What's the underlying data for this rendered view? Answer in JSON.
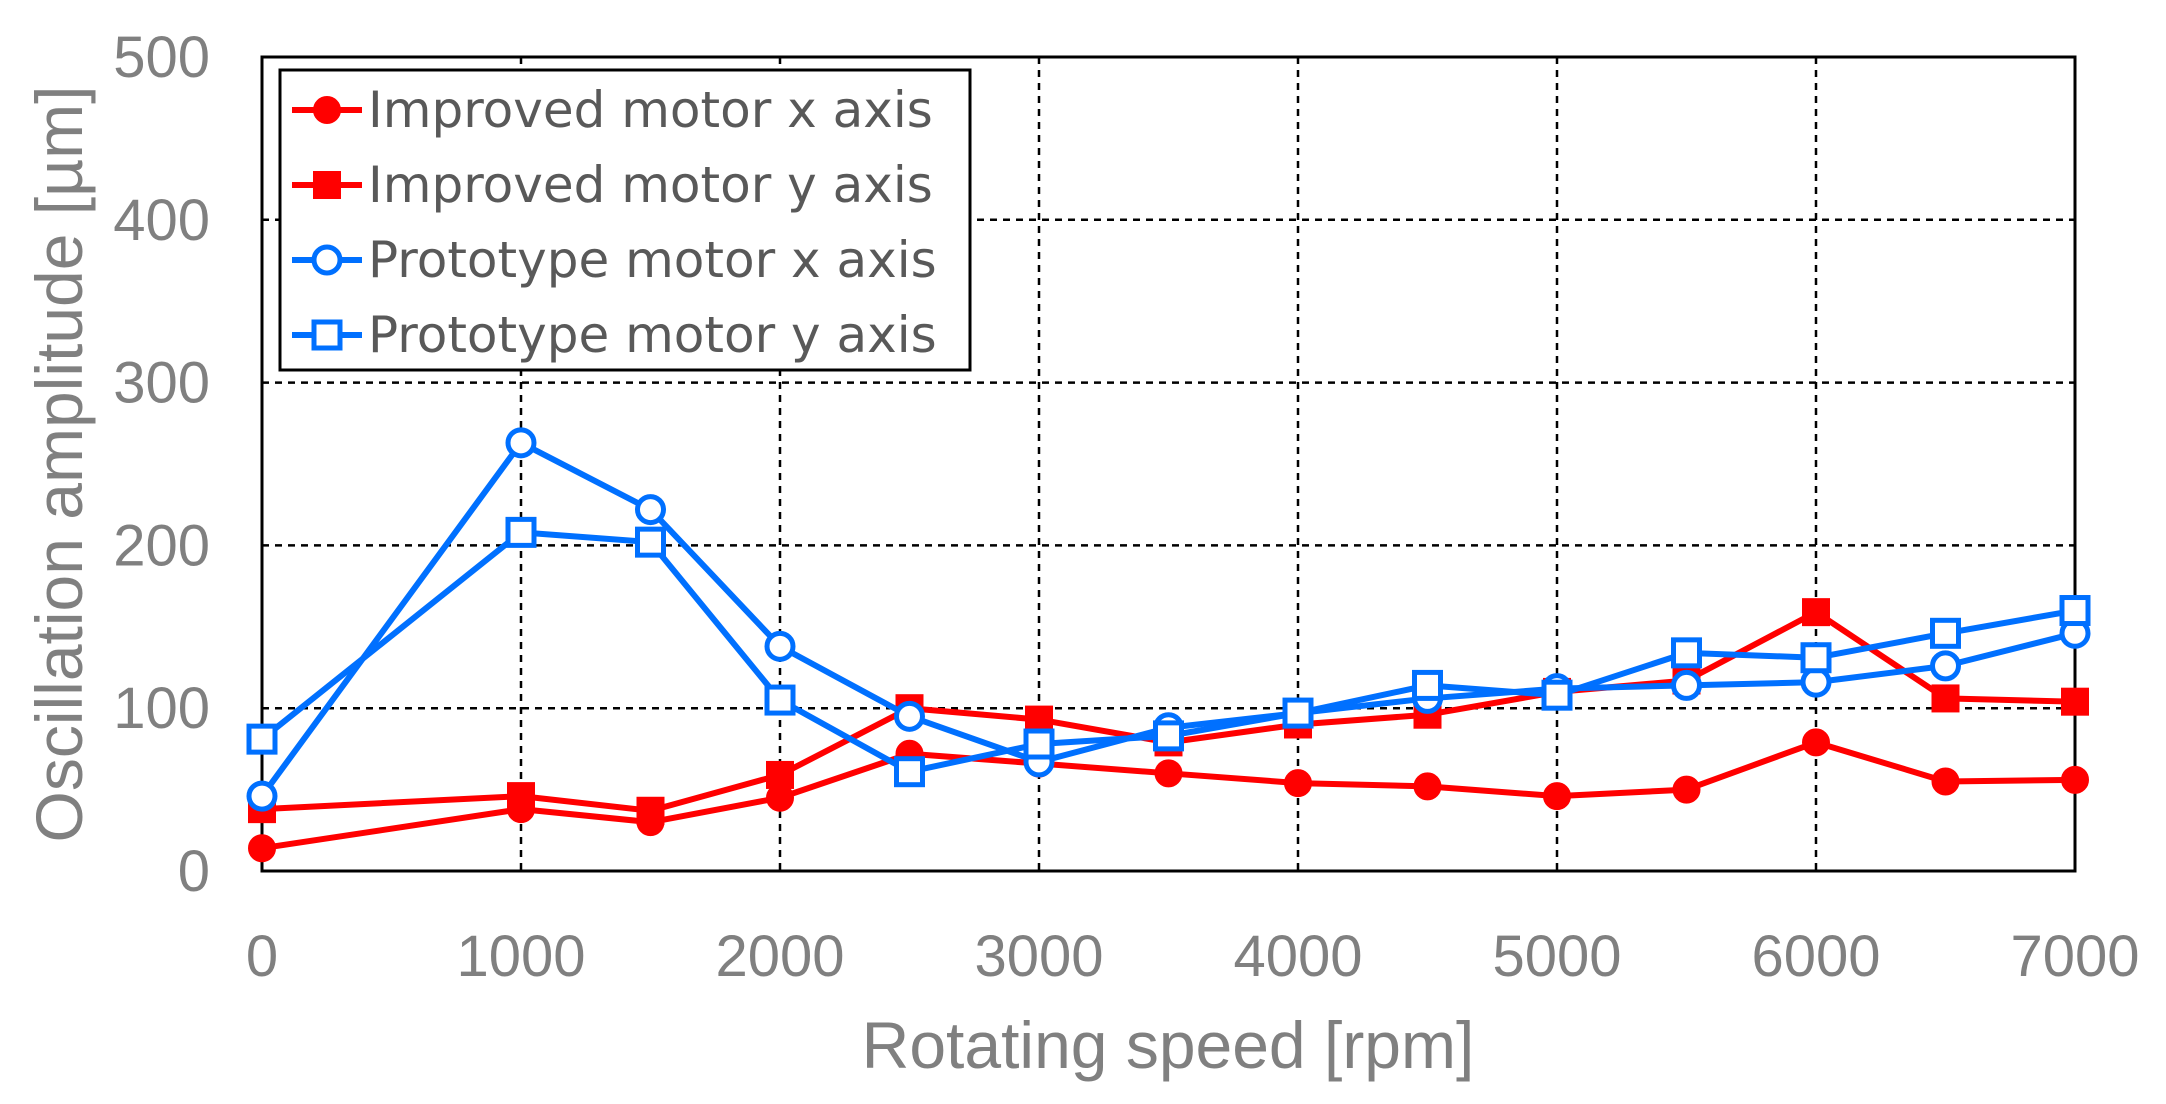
{
  "chart_data": {
    "type": "line",
    "title": "",
    "xlabel": "Rotating speed [rpm]",
    "ylabel": "Oscillation amplitude [µm]",
    "xlim": [
      0,
      7000
    ],
    "ylim": [
      0,
      500
    ],
    "xticks": [
      0,
      1000,
      2000,
      3000,
      4000,
      5000,
      6000,
      7000
    ],
    "yticks": [
      0,
      100,
      200,
      300,
      400,
      500
    ],
    "xtick_labels": [
      "0",
      "1000",
      "2000",
      "3000",
      "4000",
      "5000",
      "6000",
      "7000"
    ],
    "ytick_labels": [
      "0",
      "100",
      "200",
      "300",
      "400",
      "500"
    ],
    "grid": true,
    "legend_position": "top-left",
    "x": [
      0,
      1000,
      1500,
      2000,
      2500,
      3000,
      3500,
      4000,
      4500,
      5000,
      5500,
      6000,
      6500,
      7000
    ],
    "series": [
      {
        "name": "Improved motor x axis",
        "color": "#ff0000",
        "marker": "filled-circle",
        "values": [
          14,
          38,
          30,
          45,
          72,
          66,
          60,
          54,
          52,
          46,
          50,
          79,
          55,
          56
        ]
      },
      {
        "name": "Improved motor y axis",
        "color": "#ff0000",
        "marker": "filled-square",
        "values": [
          38,
          46,
          37,
          59,
          100,
          93,
          79,
          90,
          96,
          110,
          117,
          159,
          106,
          104
        ]
      },
      {
        "name": "Prototype motor x axis",
        "color": "#0070ff",
        "marker": "open-circle",
        "values": [
          46,
          263,
          222,
          138,
          95,
          67,
          88,
          97,
          106,
          112,
          114,
          116,
          126,
          146
        ]
      },
      {
        "name": "Prototype motor y axis",
        "color": "#0070ff",
        "marker": "open-square",
        "values": [
          81,
          208,
          202,
          105,
          61,
          78,
          83,
          97,
          114,
          108,
          134,
          131,
          146,
          160
        ]
      }
    ]
  }
}
